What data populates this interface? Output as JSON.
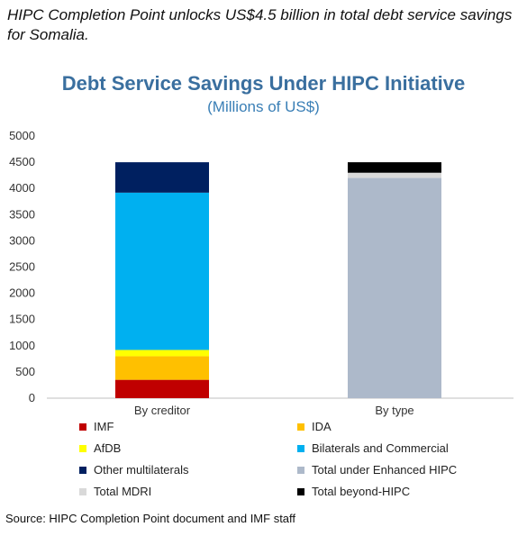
{
  "headline": "HIPC Completion Point unlocks US$4.5 billion in total debt service savings for Somalia.",
  "source": "Source: HIPC Completion Point document and IMF staff",
  "chart_data": {
    "type": "bar",
    "stacked": true,
    "title": "Debt Service Savings Under HIPC Initiative",
    "subtitle": "(Millions of US$)",
    "xlabel": "",
    "ylabel": "",
    "ylim": [
      0,
      5000
    ],
    "yticks": [
      "0",
      "500",
      "1000",
      "1500",
      "2000",
      "2500",
      "3000",
      "3500",
      "4000",
      "4500",
      "5000"
    ],
    "categories": [
      "By creditor",
      "By type"
    ],
    "grid": false,
    "legend_position": "bottom",
    "series": [
      {
        "name": "IMF",
        "color": "#c00000",
        "values": [
          350,
          0
        ]
      },
      {
        "name": "IDA",
        "color": "#ffc000",
        "values": [
          450,
          0
        ]
      },
      {
        "name": "AfDB",
        "color": "#ffff00",
        "values": [
          120,
          0
        ]
      },
      {
        "name": "Bilaterals and Commercial",
        "color": "#00b0f0",
        "values": [
          3000,
          0
        ]
      },
      {
        "name": "Other multilaterals",
        "color": "#002060",
        "values": [
          580,
          0
        ]
      },
      {
        "name": "Total under Enhanced HIPC",
        "color": "#adb9ca",
        "values": [
          0,
          4200
        ]
      },
      {
        "name": "Total MDRI",
        "color": "#d9d9d9",
        "values": [
          0,
          100
        ]
      },
      {
        "name": "Total beyond-HIPC",
        "color": "#000000",
        "values": [
          0,
          200
        ]
      }
    ]
  }
}
